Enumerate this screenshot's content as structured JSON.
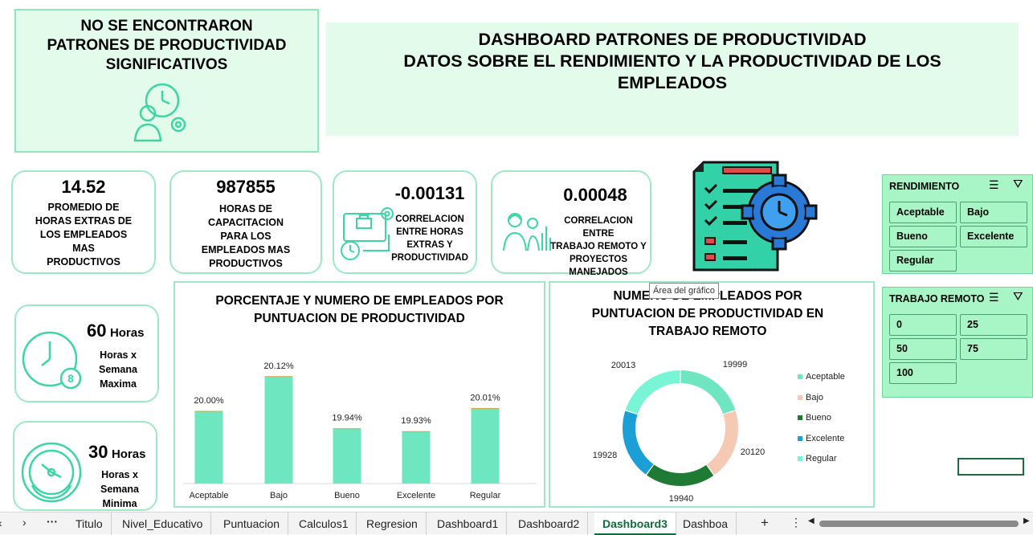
{
  "notice": {
    "lines": [
      "NO SE ENCONTRARON",
      "PATRONES DE PRODUCTIVIDAD",
      "SIGNIFICATIVOS"
    ]
  },
  "header": {
    "lines": [
      "DASHBOARD PATRONES DE PRODUCTIVIDAD",
      "DATOS SOBRE EL RENDIMIENTO Y LA PRODUCTIVIDAD DE LOS",
      "EMPLEADOS"
    ]
  },
  "kpis": [
    {
      "value": "14.52",
      "label_lines": [
        "PROMEDIO DE",
        "HORAS EXTRAS DE",
        "LOS EMPLEADOS",
        "MAS",
        "PRODUCTIVOS"
      ]
    },
    {
      "value": "987855",
      "label_lines": [
        "HORAS DE",
        "CAPACITACION",
        "PARA LOS",
        "EMPLEADOS MAS",
        "PRODUCTIVOS"
      ]
    },
    {
      "value": "-0.00131",
      "label_lines": [
        "CORRELACION",
        "ENTRE HORAS",
        "EXTRAS Y",
        "PRODUCTIVIDAD"
      ]
    },
    {
      "value": "0.00048",
      "label_lines": [
        "CORRELACION ENTRE",
        "TRABAJO REMOTO Y",
        "PROYECTOS",
        "MANEJADOS"
      ]
    }
  ],
  "hours": [
    {
      "value": "60",
      "unit": "Horas",
      "label_lines": [
        "Horas x",
        "Semana",
        "Maxima"
      ]
    },
    {
      "value": "30",
      "unit": "Horas",
      "label_lines": [
        "Horas x",
        "Semana",
        "Minima"
      ]
    }
  ],
  "tooltip": "Área del gráfico",
  "slicers": {
    "rendimiento": {
      "title": "RENDIMIENTO",
      "items": [
        "Aceptable",
        "Bajo",
        "Bueno",
        "Excelente",
        "Regular"
      ]
    },
    "remoto": {
      "title": "TRABAJO REMOTO",
      "items": [
        "0",
        "25",
        "50",
        "75",
        "100"
      ]
    }
  },
  "colors": {
    "accent": "#6ee6c0",
    "panel": "#e2fbea",
    "slicer": "#a8f5c6"
  },
  "tabs": [
    "Titulo",
    "Nivel_Educativo",
    "Puntuacion",
    "Calculos1",
    "Regresion",
    "Dashboard1",
    "Dashboard2",
    "Dashboard3",
    "Dashboa"
  ],
  "active_tab": "Dashboard3",
  "chart_data": [
    {
      "type": "bar",
      "title_lines": [
        "PORCENTAJE Y NUMERO DE EMPLEADOS POR",
        "PUNTUACION DE PRODUCTIVIDAD"
      ],
      "categories": [
        "Aceptable",
        "Bajo",
        "Bueno",
        "Excelente",
        "Regular"
      ],
      "values": [
        20.0,
        20.12,
        19.94,
        19.93,
        20.01
      ],
      "data_labels": [
        "20.00%",
        "20.12%",
        "19.94%",
        "19.93%",
        "20.01%"
      ],
      "ylim": [
        19.75,
        20.2
      ],
      "color": "#6ee6c0"
    },
    {
      "type": "pie",
      "title_lines": [
        "NUMERO DE EMPLEADOS POR",
        "PUNTUACION DE PRODUCTIVIDAD EN",
        "TRABAJO REMOTO"
      ],
      "categories": [
        "Aceptable",
        "Bajo",
        "Bueno",
        "Excelente",
        "Regular"
      ],
      "values": [
        19999,
        20120,
        19940,
        19928,
        20013
      ],
      "data_labels": [
        "19999",
        "20120",
        "19940",
        "19928",
        "20013"
      ],
      "colors": [
        "#6ee6c0",
        "#f5c9b3",
        "#1f7a34",
        "#1a9fd6",
        "#78f5d4"
      ],
      "legend": "right"
    }
  ]
}
